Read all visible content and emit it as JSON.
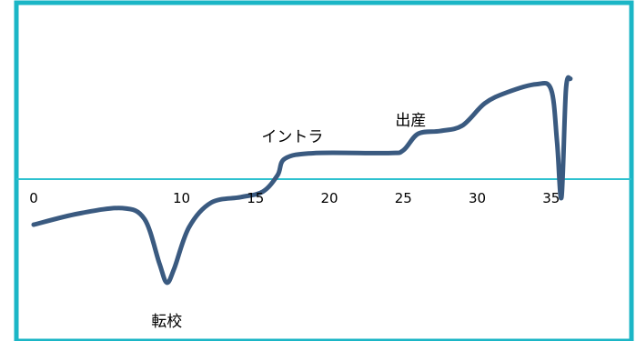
{
  "chart_data": {
    "type": "line",
    "title": "",
    "xlabel": "",
    "ylabel": "",
    "xlim": [
      0,
      40
    ],
    "x_ticks": [
      {
        "value": 0,
        "label": "0"
      },
      {
        "value": 10,
        "label": "10"
      },
      {
        "value": 15,
        "label": "15"
      },
      {
        "value": 20,
        "label": "20"
      },
      {
        "value": 25,
        "label": "25"
      },
      {
        "value": 30,
        "label": "30"
      },
      {
        "value": 35,
        "label": "35"
      }
    ],
    "ylim": [
      -2,
      8
    ],
    "series": [
      {
        "points": [
          {
            "x": 0,
            "y": 1.0
          },
          {
            "x": 3,
            "y": 1.4
          },
          {
            "x": 6,
            "y": 1.6
          },
          {
            "x": 7.5,
            "y": 1.2
          },
          {
            "x": 8.5,
            "y": -0.4
          },
          {
            "x": 9,
            "y": -1.1
          },
          {
            "x": 9.5,
            "y": -0.6
          },
          {
            "x": 10.5,
            "y": 0.9
          },
          {
            "x": 12,
            "y": 1.8
          },
          {
            "x": 14,
            "y": 2.0
          },
          {
            "x": 15.5,
            "y": 2.2
          },
          {
            "x": 16.5,
            "y": 2.8
          },
          {
            "x": 17,
            "y": 3.4
          },
          {
            "x": 19,
            "y": 3.6
          },
          {
            "x": 24,
            "y": 3.6
          },
          {
            "x": 25,
            "y": 3.7
          },
          {
            "x": 26,
            "y": 4.3
          },
          {
            "x": 27.5,
            "y": 4.4
          },
          {
            "x": 29,
            "y": 4.6
          },
          {
            "x": 30.5,
            "y": 5.4
          },
          {
            "x": 32,
            "y": 5.8
          },
          {
            "x": 34,
            "y": 6.1
          },
          {
            "x": 35,
            "y": 5.9
          },
          {
            "x": 35.4,
            "y": 4.0
          },
          {
            "x": 35.7,
            "y": 2.0
          },
          {
            "x": 36,
            "y": 5.9
          },
          {
            "x": 36.3,
            "y": 6.3
          }
        ],
        "color": "#3A5A80"
      }
    ],
    "annotations": [
      {
        "text": "転校",
        "x": 9,
        "y": -2.7
      },
      {
        "text": "イントラ",
        "x": 17.5,
        "y": 4.0
      },
      {
        "text": "出産",
        "x": 25.5,
        "y": 4.6
      }
    ],
    "grid": false,
    "legend": "none"
  },
  "colors": {
    "frame": "#1BB6C6",
    "axis": "#2EC1CF",
    "line": "#3A5A80"
  }
}
